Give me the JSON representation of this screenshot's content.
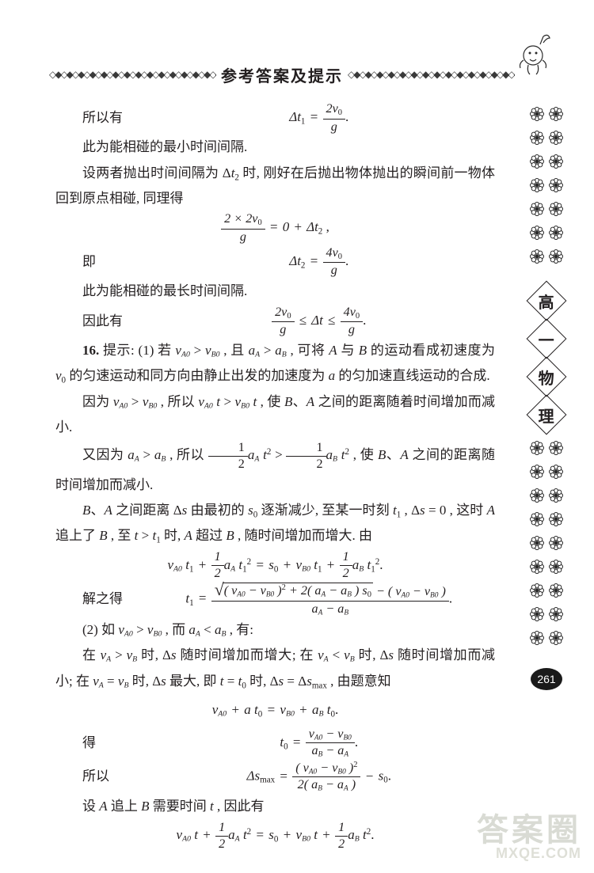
{
  "header": {
    "diamond_run": "◇◆◇◆◇◆◇◆◇◆◇◆◇◆◇◆◇◆◇◆◇◆◇◆◇◆◇◆◇◆◇◆",
    "title": "参考答案及提示"
  },
  "sidebar": {
    "label_chars": [
      "高",
      "一",
      "物",
      "理"
    ],
    "page_number": "261",
    "flower_stroke": "#2b2b2b",
    "flower_fill": "#ffffff"
  },
  "text": {
    "p01_lead": "所以有",
    "p01_eq_num": "2v₀",
    "p01_eq_den": "g",
    "p01_eq_lhs": "Δt₁ = ",
    "p02": "此为能相碰的最小时间间隔.",
    "p03": "设两者抛出时间间隔为 Δt₂ 时, 刚好在后抛出物体抛出的瞬间前一物体回到原点相碰, 同理得",
    "eq02_num": "2 × 2v₀",
    "eq02_den": "g",
    "eq02_rhs": " = 0 + Δt₂ ,",
    "p04_lead": "即",
    "eq03_lhs": "Δt₂ = ",
    "eq03_num": "4v₀",
    "eq03_den": "g",
    "p05": "此为能相碰的最长时间间隔.",
    "p06_lead": "因此有",
    "eq04_l_num": "2v₀",
    "eq04_l_den": "g",
    "eq04_mid": " ≤ Δt ≤ ",
    "eq04_r_num": "4v₀",
    "eq04_r_den": "g",
    "p07": "16. 提示: (1) 若 v_A0 > v_B0 , 且 a_A > a_B , 可将 A 与 B 的运动看成初速度为 v₀ 的匀速运动和同方向由静止出发的加速度为 a 的匀加速直线运动的合成.",
    "p08": "因为 v_A0 > v_B0 , 所以 v_A0 t > v_B0 t , 使 B、A 之间的距离随着时间增加而减小.",
    "p09a": "又因为 a_A > a_B , 所以 ",
    "p09b": " , 使 B、A 之间的距离随时间增加而减小.",
    "p10": "B、A 之间距离 Δs 由最初的 s₀ 逐渐减少, 至某一时刻 t₁ , Δs = 0 , 这时 A 追上了 B , 至 t > t₁ 时, A 超过 B , 随时间增加而增大. 由",
    "eq05": "v_A0 t₁ + ½ a_A t₁² = s₀ + v_B0 t₁ + ½ a_B t₁².",
    "p11_lead": "解之得",
    "eq06_sqrt": "( v_A0 − v_B0 )² + 2( a_A − a_B ) s₀",
    "eq06_after": " − ( v_A0 − v_B0 )",
    "eq06_den": "a_A − a_B",
    "eq06_lhs": "t₁ = ",
    "p12": "(2) 如 v_A0 > v_B0 , 而 a_A < a_B , 有:",
    "p13": "在 v_A > v_B 时, Δs 随时间增加而增大; 在 v_A < v_B 时, Δs 随时间增加而减小; 在 v_A = v_B 时, Δs 最大, 即 t = t₀ 时, Δs = Δs_max , 由题意知",
    "eq07": "v_A0 + a t₀ = v_B0 + a_B t₀.",
    "p14_lead": "得",
    "eq08_lhs": "t₀ = ",
    "eq08_num": "v_A0 − v_B0",
    "eq08_den": "a_B − a_A",
    "p15_lead": "所以",
    "eq09_lhs": "Δs_max = ",
    "eq09_num": "( v_A0 − v_B0 )²",
    "eq09_den": "2( a_B − a_A )",
    "eq09_tail": " − s₀.",
    "p16": "设 A 追上 B 需要时间 t , 因此有",
    "eq10": "v_A0 t + ½ a_A t² = s₀ + v_B0 t + ½ a_B t²."
  },
  "watermark": {
    "big": "答案圈",
    "url": "MXQE.COM"
  },
  "colors": {
    "text": "#231f20",
    "bg": "#ffffff",
    "wm": "#cdd0c6",
    "pageno_bg": "#1a1a1a"
  }
}
